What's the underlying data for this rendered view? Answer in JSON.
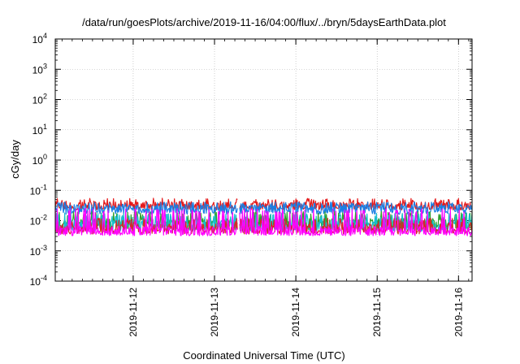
{
  "chart_data": {
    "type": "line",
    "title": "/data/run/goesPlots/archive/2019-11-16/04:00/flux/../bryn/5daysEarthData.plot",
    "xlabel": "Coordinated Universal Time (UTC)",
    "ylabel": "cGy/day",
    "y_scale": "log",
    "ylim": [
      0.0001,
      10000
    ],
    "xlim": [
      "2019-11-11 01:00",
      "2019-11-16 04:00"
    ],
    "grid": true,
    "legend": "none",
    "y_ticks": [
      {
        "base": "10",
        "exp": "-4"
      },
      {
        "base": "10",
        "exp": "-3"
      },
      {
        "base": "10",
        "exp": "-2"
      },
      {
        "base": "10",
        "exp": "-1"
      },
      {
        "base": "10",
        "exp": "0"
      },
      {
        "base": "10",
        "exp": "1"
      },
      {
        "base": "10",
        "exp": "2"
      },
      {
        "base": "10",
        "exp": "3"
      },
      {
        "base": "10",
        "exp": "4"
      }
    ],
    "x_ticks": [
      "2019-11-12",
      "2019-11-13",
      "2019-11-14",
      "2019-11-15",
      "2019-11-16"
    ],
    "gap": {
      "from": "2019-11-13 06:45",
      "to": "2019-11-13 07:25"
    },
    "series": [
      {
        "color": "#e41a1c",
        "baseline": 0.032,
        "spike": 0.055,
        "low": 0.025
      },
      {
        "color": "#1a7fe4",
        "baseline": 0.026,
        "spike": 0.042,
        "low": 0.018
      },
      {
        "color": "#2ca02c",
        "baseline": 0.009,
        "spike": 0.02,
        "low": 0.0055
      },
      {
        "color": "#17becf",
        "baseline": 0.008,
        "spike": 0.018,
        "low": 0.005
      },
      {
        "color": "#d62728",
        "baseline": 0.006,
        "spike": 0.012,
        "low": 0.004
      },
      {
        "color": "#ff00ff",
        "baseline": 0.005,
        "spike": 0.025,
        "low": 0.0035
      }
    ]
  }
}
